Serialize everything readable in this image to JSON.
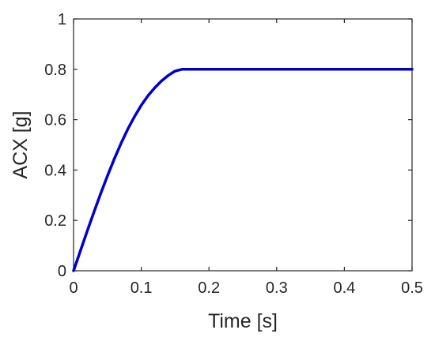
{
  "chart_data": {
    "type": "line",
    "title": "",
    "xlabel": "Time [s]",
    "ylabel": "ACX [g]",
    "xlim": [
      0,
      0.5
    ],
    "ylim": [
      0,
      1
    ],
    "x_ticks": [
      "0",
      "0.1",
      "0.2",
      "0.3",
      "0.4",
      "0.5"
    ],
    "y_ticks": [
      "0",
      "0.2",
      "0.4",
      "0.6",
      "0.8",
      "1"
    ],
    "grid": false,
    "legend": "none",
    "series": [
      {
        "color": "#0000cc",
        "x": [
          0,
          0.01,
          0.02,
          0.03,
          0.04,
          0.05,
          0.06,
          0.07,
          0.08,
          0.09,
          0.1,
          0.11,
          0.12,
          0.13,
          0.14,
          0.15,
          0.16,
          0.2,
          0.3,
          0.4,
          0.5
        ],
        "y": [
          0,
          0.078,
          0.156,
          0.232,
          0.306,
          0.376,
          0.443,
          0.505,
          0.562,
          0.612,
          0.657,
          0.695,
          0.727,
          0.754,
          0.776,
          0.793,
          0.8,
          0.8,
          0.8,
          0.8,
          0.8
        ]
      }
    ]
  }
}
